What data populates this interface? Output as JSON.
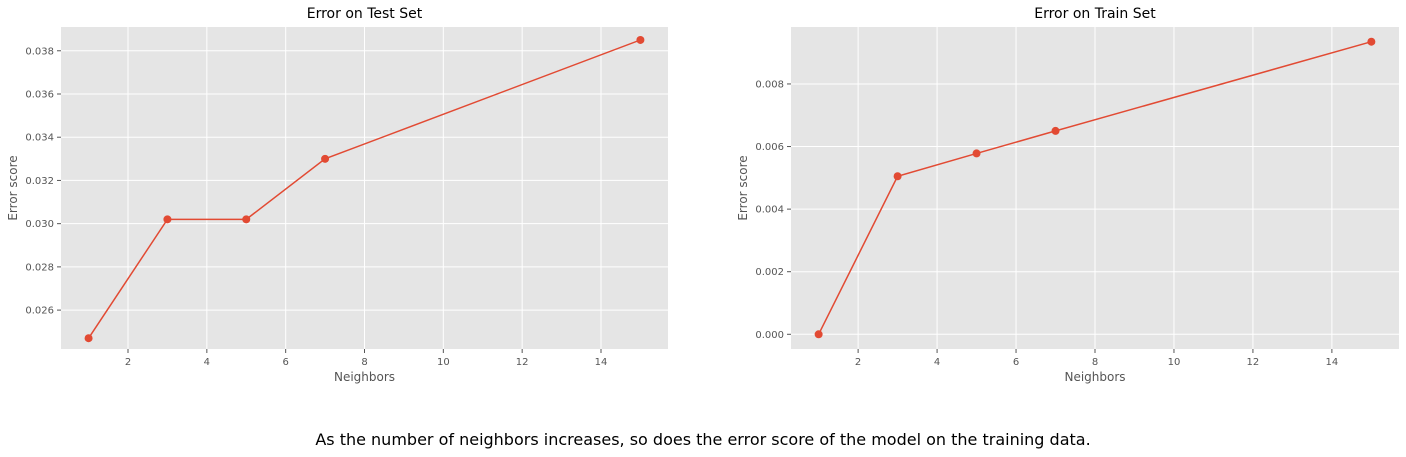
{
  "chart_data": [
    {
      "type": "line",
      "title": "Error on Test Set",
      "xlabel": "Neighbors",
      "ylabel": "Error score",
      "x": [
        1,
        3,
        5,
        7,
        15
      ],
      "series": [
        {
          "values": [
            0.0247,
            0.0302,
            0.0302,
            0.033,
            0.0385
          ]
        }
      ],
      "xlim": [
        0.3,
        15.7
      ],
      "ylim": [
        0.0242,
        0.0391
      ],
      "xticks": [
        2,
        4,
        6,
        8,
        10,
        12,
        14
      ],
      "xticklabels": [
        "2",
        "4",
        "6",
        "8",
        "10",
        "12",
        "14"
      ],
      "yticks": [
        0.026,
        0.028,
        0.03,
        0.032,
        0.034,
        0.036,
        0.038
      ],
      "yticklabels": [
        "0.026",
        "0.028",
        "0.030",
        "0.032",
        "0.034",
        "0.036",
        "0.038"
      ],
      "grid": true,
      "color": "#E24A33"
    },
    {
      "type": "line",
      "title": "Error on Train Set",
      "xlabel": "Neighbors",
      "ylabel": "Error score",
      "x": [
        1,
        3,
        5,
        7,
        15
      ],
      "series": [
        {
          "values": [
            0.0,
            0.00505,
            0.00578,
            0.0065,
            0.00935
          ]
        }
      ],
      "xlim": [
        0.3,
        15.7
      ],
      "ylim": [
        -0.00047,
        0.00982
      ],
      "xticks": [
        2,
        4,
        6,
        8,
        10,
        12,
        14
      ],
      "xticklabels": [
        "2",
        "4",
        "6",
        "8",
        "10",
        "12",
        "14"
      ],
      "yticks": [
        0.0,
        0.002,
        0.004,
        0.006,
        0.008
      ],
      "yticklabels": [
        "0.000",
        "0.002",
        "0.004",
        "0.006",
        "0.008"
      ],
      "grid": true,
      "color": "#E24A33"
    }
  ],
  "caption": "As the number of neighbors increases, so does the error score of the model on the training data.",
  "colors": {
    "plot_background": "#E5E5E5",
    "grid": "#FFFFFF",
    "line": "#E24A33",
    "tick_text": "#555555",
    "label_text": "#555555"
  }
}
